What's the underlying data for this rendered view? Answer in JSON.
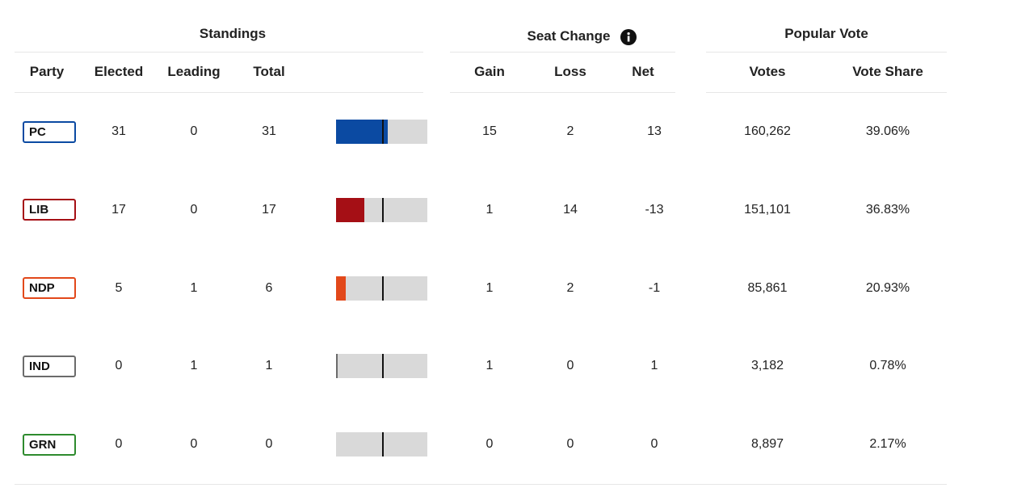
{
  "groups": [
    {
      "title": "Standings"
    },
    {
      "title": "Seat Change"
    },
    {
      "title": "Popular Vote"
    }
  ],
  "columns": [
    "Party",
    "Elected",
    "Leading",
    "Total",
    "Gain",
    "Loss",
    "Net",
    "Votes",
    "Vote Share"
  ],
  "rows": [
    {
      "party": "PC",
      "color": "#0b4aa2",
      "elected": 31,
      "leading": 0,
      "total": 31,
      "gain": 15,
      "loss": 2,
      "net": 13,
      "votes": "160,262",
      "vote_share": "39.06%"
    },
    {
      "party": "LIB",
      "color": "#a50f15",
      "elected": 17,
      "leading": 0,
      "total": 17,
      "gain": 1,
      "loss": 14,
      "net": -13,
      "votes": "151,101",
      "vote_share": "36.83%"
    },
    {
      "party": "NDP",
      "color": "#e2481a",
      "elected": 5,
      "leading": 1,
      "total": 6,
      "gain": 1,
      "loss": 2,
      "net": -1,
      "votes": "85,861",
      "vote_share": "20.93%"
    },
    {
      "party": "IND",
      "color": "#6b6b6b",
      "elected": 0,
      "leading": 1,
      "total": 1,
      "gain": 1,
      "loss": 0,
      "net": 1,
      "votes": "3,182",
      "vote_share": "0.78%"
    },
    {
      "party": "GRN",
      "color": "#2e8b2e",
      "elected": 0,
      "leading": 0,
      "total": 0,
      "gain": 0,
      "loss": 0,
      "net": 0,
      "votes": "8,897",
      "vote_share": "2.17%"
    }
  ]
}
